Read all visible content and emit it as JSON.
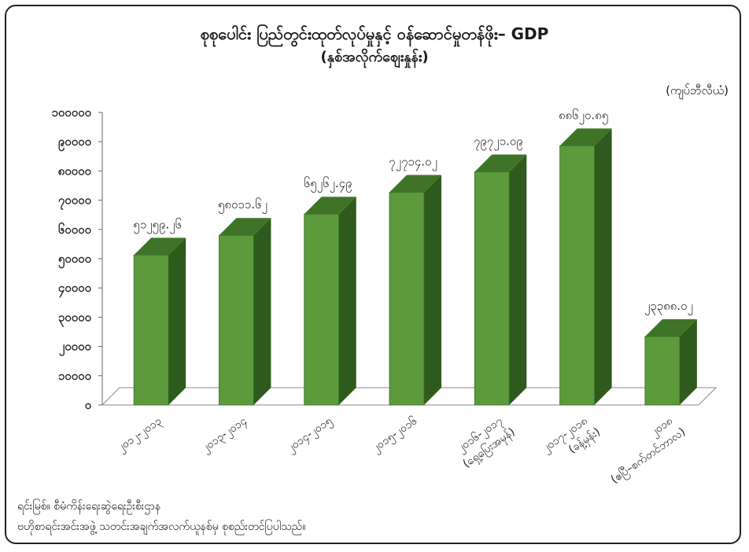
{
  "chart_data": {
    "type": "bar",
    "title": "စုစုပေါင်း ပြည်တွင်းထုတ်လုပ်မှုနှင့် ဝန်ဆောင်မှုတန်ဖိုး– GDP",
    "subtitle": "(နှစ်အလိုက်ဈေးနှုန်း)",
    "unit": "(ကျပ်ဘီလီယံ)",
    "ylim": [
      0,
      100000
    ],
    "yticks": [
      "၀",
      "၁၀၀၀၀",
      "၂၀၀၀၀",
      "၃၀၀၀၀",
      "၄၀၀၀၀",
      "၅၀၀၀၀",
      "၆၀၀၀၀",
      "၇၀၀၀၀",
      "၈၀၀၀၀",
      "၉၀၀၀၀",
      "၁၀၀၀၀၀"
    ],
    "ytick_values": [
      0,
      10000,
      20000,
      30000,
      40000,
      50000,
      60000,
      70000,
      80000,
      90000,
      100000
    ],
    "categories": [
      [
        "၂၀၁၂-၂၀၁၃"
      ],
      [
        "၂၀၁၃-၂၀၁၄"
      ],
      [
        "၂၀၁၄-၂၀၁၅"
      ],
      [
        "၂၀၁၅-၂၀၁၆"
      ],
      [
        "၂၀၁၆-၂၀၁၇",
        "(ရှေ့ပြေးအမှန်)"
      ],
      [
        "၂၀၁၇-၂၀၁၈",
        "(ခန့်မှန်း)"
      ],
      [
        "၂၀၁၈",
        "(ဧပြီ–စက်တင်ဘာလ)"
      ]
    ],
    "values": [
      51259.26,
      58011.62,
      65262.49,
      72714.02,
      79721.09,
      88620.85,
      23388.02
    ],
    "data_labels": [
      "၅၁၂၅၉.၂၆",
      "၅၈၀၁၁.၆၂",
      "၆၅၂၆၂.၄၉",
      "၇၂၇၁၄.၀၂",
      "၇၉၇၂၁.၀၉",
      "၈၈၆၂၀.၈၅",
      "၂၃၃၈၈.၀၂"
    ],
    "bar_color": "#5c9a3c",
    "bar_side_color": "#2f5a1e",
    "bar_top_color": "#3f7428",
    "grid": false,
    "legend": "none"
  },
  "source": {
    "line1": "ရင်းမြစ်။ စီမံကိန်းရေးဆွဲရေးဦးစီးဌာန",
    "line2": "ဗဟိုစာရင်းအင်းအဖွဲ့ သတင်းအချက်အလက်ယူနစ်မှ စုစည်းတင်ပြပါသည်။"
  }
}
